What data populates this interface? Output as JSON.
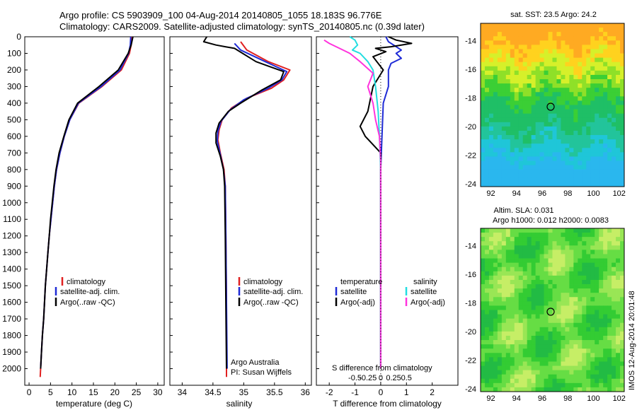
{
  "header": {
    "line1": "Argo profile: CS 5903909_100 04-Aug-2014 20140805_1055 18.183S 96.776E",
    "line2": "Climatology: CARS2009. Satellite-adjusted climatology: synTS_20140805.nc (0.39d later)"
  },
  "colors": {
    "climatology": "#e02020",
    "satellite": "#1f2bd6",
    "argo": "#000000",
    "sat_salinity": "#22dde0",
    "argo_salinity": "#ff33dd"
  },
  "depth_ticks": [
    "0",
    "100",
    "200",
    "300",
    "400",
    "500",
    "600",
    "700",
    "800",
    "900",
    "1000",
    "1100",
    "1200",
    "1300",
    "1400",
    "1500",
    "1600",
    "1700",
    "1800",
    "1900",
    "2000"
  ],
  "panels": {
    "temperature": {
      "xlabel": "temperature (deg C)",
      "xticks": [
        "0",
        "5",
        "10",
        "15",
        "20",
        "25",
        "30"
      ],
      "legend": [
        "climatology",
        "satellite-adj. clim.",
        "Argo(..raw -QC)"
      ]
    },
    "salinity": {
      "xlabel": "salinity",
      "xticks": [
        "34",
        "34.5",
        "35",
        "35.5",
        "36"
      ],
      "legend": [
        "climatology",
        "satellite-adj. clim.",
        "Argo(..raw -QC)"
      ],
      "note1": "Argo Australia",
      "note2": "PI: Susan Wijffels"
    },
    "difference": {
      "legend_temp_title": "temperature",
      "legend_sal_title": "salinity",
      "legend_temp": [
        "satellite",
        "Argo(-adj)"
      ],
      "legend_sal": [
        "satellite",
        "Argo(-adj)"
      ],
      "s_label": "S difference from climatology",
      "s_ticks": [
        "-0.5",
        "-0.25",
        "0",
        "0.25",
        "0.5"
      ],
      "t_ticks": [
        "-2",
        "-1",
        "0",
        "1",
        "2"
      ],
      "xlabel": "T difference from climatology"
    }
  },
  "maps": {
    "sst": {
      "title": "sat. SST: 23.5 Argo: 24.2",
      "yticks": [
        "-14",
        "-16",
        "-18",
        "-20",
        "-22",
        "-24"
      ],
      "xticks": [
        "92",
        "94",
        "96",
        "98",
        "100",
        "102"
      ]
    },
    "sla": {
      "title1": "Altim. SLA: 0.031",
      "title2": "Argo h1000: 0.012 h2000: 0.0083",
      "yticks": [
        "-14",
        "-16",
        "-18",
        "-20",
        "-22",
        "-24"
      ],
      "xticks": [
        "92",
        "94",
        "96",
        "98",
        "100",
        "102"
      ]
    }
  },
  "credit": "IMOS 12-Aug-2014 20:01:48",
  "chart_data": [
    {
      "type": "line",
      "xlabel": "temperature (deg C)",
      "ylabel": "",
      "xlim": [
        -1,
        31.5
      ],
      "ylim": [
        2100,
        0
      ],
      "series": [
        {
          "name": "climatology",
          "points": [
            [
              24,
              0
            ],
            [
              23.8,
              50
            ],
            [
              23.4,
              100
            ],
            [
              21.5,
              200
            ],
            [
              17,
              300
            ],
            [
              11.6,
              400
            ],
            [
              9.5,
              500
            ],
            [
              8.2,
              600
            ],
            [
              7.2,
              700
            ],
            [
              6.4,
              800
            ],
            [
              5.9,
              900
            ],
            [
              5.5,
              1000
            ],
            [
              5.1,
              1100
            ],
            [
              4.7,
              1200
            ],
            [
              4.4,
              1300
            ],
            [
              4.1,
              1400
            ],
            [
              3.8,
              1500
            ],
            [
              3.6,
              1600
            ],
            [
              3.4,
              1700
            ],
            [
              3.1,
              1800
            ],
            [
              2.9,
              1900
            ],
            [
              2.7,
              2000
            ],
            [
              2.6,
              2050
            ]
          ]
        },
        {
          "name": "satellite-adj. clim.",
          "points": [
            [
              23.7,
              0
            ],
            [
              23.6,
              50
            ],
            [
              23.2,
              100
            ],
            [
              21.2,
              200
            ],
            [
              16.8,
              300
            ],
            [
              11.5,
              400
            ],
            [
              9.5,
              500
            ],
            [
              8.2,
              600
            ],
            [
              7.2,
              700
            ],
            [
              6.4,
              800
            ],
            [
              5.9,
              900
            ],
            [
              5.5,
              1000
            ],
            [
              5.1,
              1100
            ],
            [
              4.7,
              1200
            ],
            [
              4.4,
              1300
            ],
            [
              4.1,
              1400
            ],
            [
              3.8,
              1500
            ],
            [
              3.6,
              1600
            ],
            [
              3.4,
              1700
            ],
            [
              3.1,
              1800
            ],
            [
              2.9,
              1900
            ],
            [
              2.7,
              2000
            ]
          ]
        },
        {
          "name": "Argo(..raw -QC)",
          "points": [
            [
              24.2,
              0
            ],
            [
              23.8,
              50
            ],
            [
              23.1,
              100
            ],
            [
              20.8,
              200
            ],
            [
              16.3,
              300
            ],
            [
              11.3,
              400
            ],
            [
              9.3,
              500
            ],
            [
              8.1,
              600
            ],
            [
              7.0,
              700
            ],
            [
              6.3,
              800
            ],
            [
              5.8,
              900
            ],
            [
              5.4,
              1000
            ],
            [
              5.0,
              1100
            ],
            [
              4.7,
              1200
            ],
            [
              4.4,
              1300
            ],
            [
              4.1,
              1400
            ],
            [
              3.8,
              1500
            ],
            [
              3.6,
              1600
            ],
            [
              3.4,
              1700
            ],
            [
              3.1,
              1800
            ],
            [
              2.9,
              1900
            ],
            [
              2.7,
              2000
            ]
          ]
        }
      ]
    },
    {
      "type": "line",
      "xlabel": "salinity",
      "ylabel": "",
      "xlim": [
        33.8,
        36.1
      ],
      "ylim": [
        2100,
        0
      ],
      "series": [
        {
          "name": "climatology",
          "points": [
            [
              34.95,
              30
            ],
            [
              35.05,
              80
            ],
            [
              35.4,
              150
            ],
            [
              35.75,
              200
            ],
            [
              35.65,
              260
            ],
            [
              35.45,
              310
            ],
            [
              35.05,
              370
            ],
            [
              34.8,
              430
            ],
            [
              34.65,
              500
            ],
            [
              34.6,
              560
            ],
            [
              34.58,
              620
            ],
            [
              34.62,
              700
            ],
            [
              34.68,
              800
            ],
            [
              34.7,
              900
            ],
            [
              34.71,
              1200
            ],
            [
              34.72,
              1600
            ],
            [
              34.72,
              2000
            ],
            [
              34.72,
              2050
            ]
          ]
        },
        {
          "name": "satellite-adj. clim.",
          "points": [
            [
              34.85,
              40
            ],
            [
              34.95,
              80
            ],
            [
              35.35,
              150
            ],
            [
              35.7,
              210
            ],
            [
              35.62,
              260
            ],
            [
              35.4,
              310
            ],
            [
              35.0,
              380
            ],
            [
              34.78,
              440
            ],
            [
              34.63,
              510
            ],
            [
              34.58,
              570
            ],
            [
              34.57,
              630
            ],
            [
              34.62,
              710
            ],
            [
              34.67,
              800
            ],
            [
              34.7,
              900
            ],
            [
              34.71,
              1200
            ],
            [
              34.72,
              1600
            ],
            [
              34.73,
              2000
            ]
          ]
        },
        {
          "name": "Argo(..raw -QC)",
          "points": [
            [
              34.4,
              0
            ],
            [
              34.35,
              30
            ],
            [
              34.55,
              50
            ],
            [
              34.7,
              60
            ],
            [
              34.85,
              70
            ],
            [
              35.2,
              150
            ],
            [
              35.65,
              210
            ],
            [
              35.6,
              260
            ],
            [
              35.3,
              320
            ],
            [
              34.95,
              400
            ],
            [
              34.75,
              450
            ],
            [
              34.6,
              520
            ],
            [
              34.55,
              580
            ],
            [
              34.55,
              640
            ],
            [
              34.62,
              720
            ],
            [
              34.67,
              800
            ],
            [
              34.69,
              900
            ],
            [
              34.7,
              1200
            ],
            [
              34.71,
              1600
            ],
            [
              34.72,
              2000
            ]
          ]
        }
      ]
    },
    {
      "type": "line",
      "xlabel": "T difference from climatology",
      "ylabel": "",
      "xlim": [
        -2.5,
        3
      ],
      "ylim": [
        2100,
        0
      ],
      "series": [
        {
          "name": "temperature satellite",
          "points": [
            [
              0.2,
              0
            ],
            [
              0.3,
              30
            ],
            [
              0.5,
              50
            ],
            [
              0.8,
              80
            ],
            [
              0.6,
              100
            ],
            [
              0.8,
              130
            ],
            [
              0.4,
              160
            ],
            [
              0.3,
              200
            ],
            [
              0.3,
              300
            ],
            [
              0.1,
              400
            ],
            [
              0.05,
              600
            ],
            [
              0,
              800
            ],
            [
              0,
              2000
            ]
          ]
        },
        {
          "name": "temperature Argo(-adj)",
          "points": [
            [
              0.3,
              0
            ],
            [
              0.6,
              20
            ],
            [
              1.2,
              40
            ],
            [
              0.4,
              60
            ],
            [
              -0.2,
              70
            ],
            [
              0.2,
              90
            ],
            [
              -0.3,
              120
            ],
            [
              0.1,
              200
            ],
            [
              -0.3,
              300
            ],
            [
              -0.5,
              450
            ],
            [
              -0.8,
              540
            ],
            [
              -0.6,
              600
            ],
            [
              -0.3,
              650
            ],
            [
              0,
              700
            ],
            [
              0,
              2000
            ]
          ]
        },
        {
          "name": "salinity satellite",
          "points": [
            [
              -1.2,
              0
            ],
            [
              -1.0,
              20
            ],
            [
              -0.9,
              50
            ],
            [
              -1.1,
              80
            ],
            [
              -0.8,
              100
            ],
            [
              -0.5,
              150
            ],
            [
              -0.3,
              200
            ],
            [
              -0.2,
              300
            ],
            [
              -0.1,
              450
            ],
            [
              -0.05,
              600
            ],
            [
              0,
              800
            ],
            [
              0,
              2000
            ]
          ]
        },
        {
          "name": "salinity Argo(-adj)",
          "points": [
            [
              -2.2,
              20
            ],
            [
              -2.0,
              40
            ],
            [
              -1.6,
              70
            ],
            [
              -1.2,
              100
            ],
            [
              -0.8,
              150
            ],
            [
              -0.3,
              220
            ],
            [
              -0.5,
              300
            ],
            [
              -0.3,
              400
            ],
            [
              -0.2,
              500
            ],
            [
              -0.05,
              600
            ],
            [
              0,
              750
            ],
            [
              0,
              2000
            ]
          ]
        }
      ]
    }
  ]
}
